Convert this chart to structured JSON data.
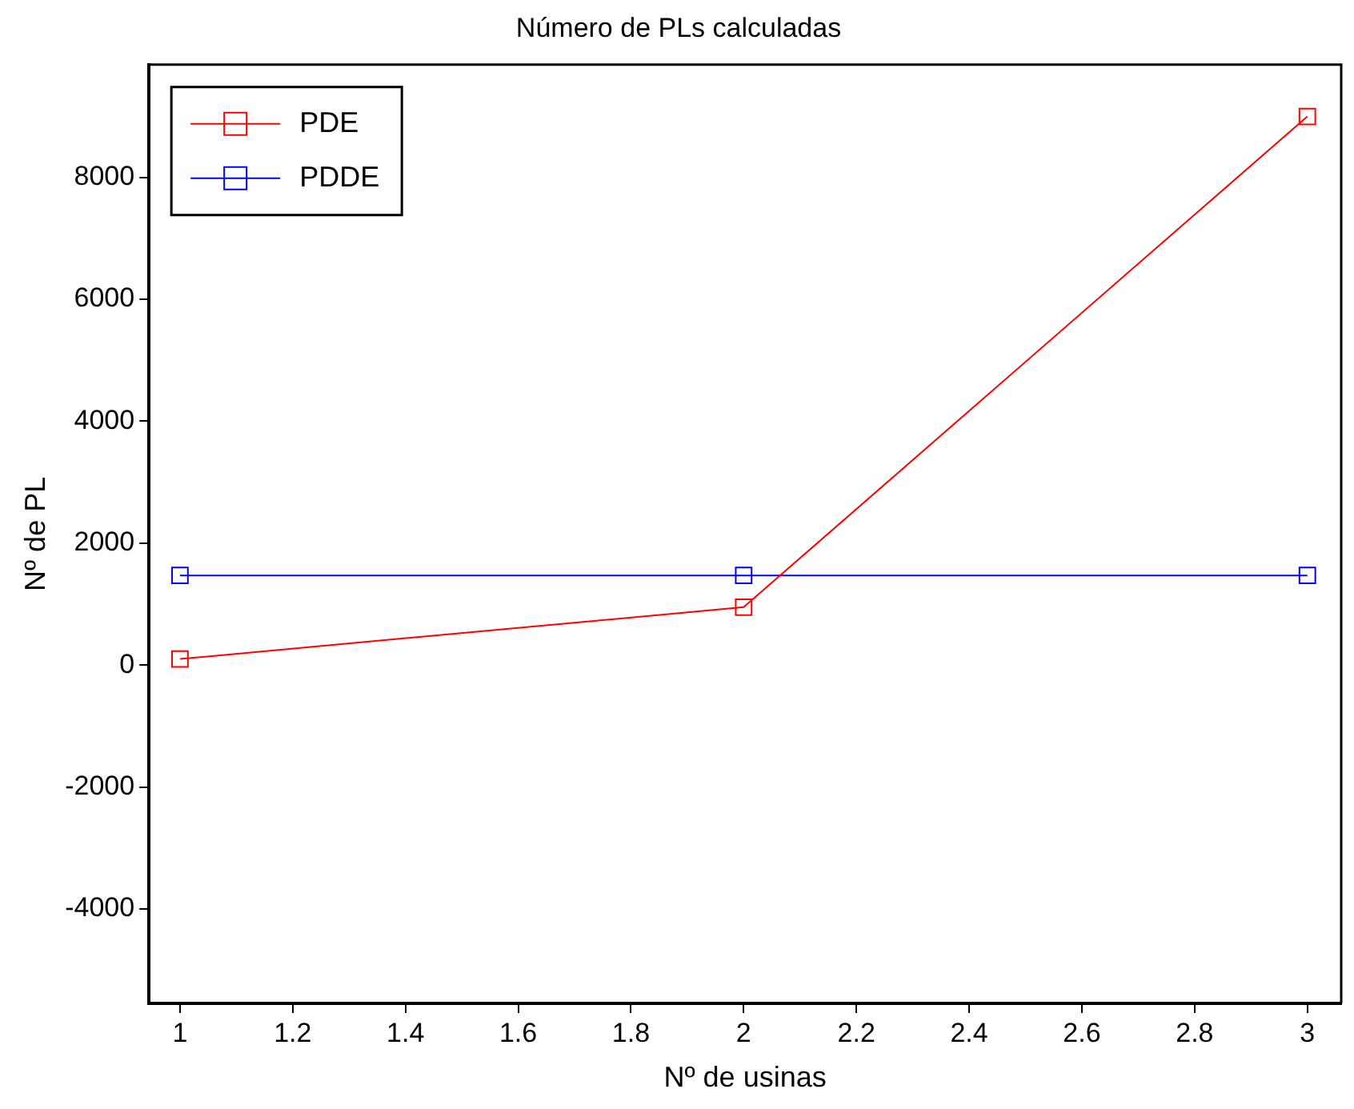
{
  "chart_data": {
    "type": "line",
    "title": "Número de PLs calculadas",
    "xlabel": "Nº de usinas",
    "ylabel": "Nº de PL",
    "x": [
      1,
      2,
      3
    ],
    "series": [
      {
        "name": "PDE",
        "color": "#ff0000",
        "values": [
          100,
          950,
          9000
        ]
      },
      {
        "name": "PDDE",
        "color": "#0000ff",
        "values": [
          1470,
          1470,
          1470
        ]
      }
    ],
    "xlim": [
      0.945,
      3.06
    ],
    "xticks": [
      1,
      1.2,
      1.4,
      1.6,
      1.8,
      2,
      2.2,
      2.4,
      2.6,
      2.8,
      3
    ],
    "ylim": [
      -5550,
      9850
    ],
    "yticks": [
      -4000,
      -2000,
      0,
      2000,
      4000,
      6000,
      8000
    ],
    "grid": false,
    "legend": "top left",
    "marker": "square",
    "line_style": "solid"
  }
}
